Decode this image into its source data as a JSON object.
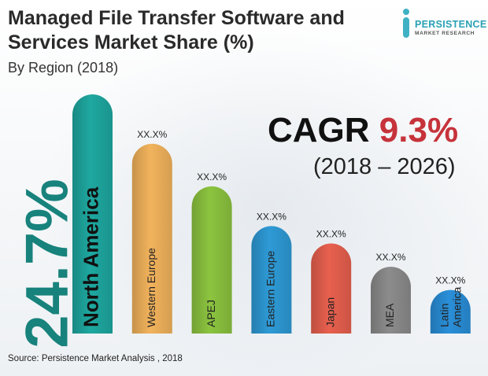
{
  "title": "Managed File Transfer Software and Services Market Share (%)",
  "subtitle": "By Region (2018)",
  "logo": {
    "name": "PERSISTENCE",
    "sub": "MARKET RESEARCH"
  },
  "cagr": {
    "label": "CAGR",
    "value": "9.3%",
    "period": "(2018 – 2026)"
  },
  "highlight": "24.7%",
  "source": "Source: Persistence Market Analysis , 2018",
  "chart_data": {
    "type": "bar",
    "categories": [
      "North America",
      "Western Europe",
      "APEJ",
      "Eastern Europe",
      "Japan",
      "MEA",
      "Latin America"
    ],
    "values": [
      24.7,
      19.6,
      15.2,
      11.1,
      9.3,
      6.9,
      4.5
    ],
    "value_labels": [
      "",
      "XX.X%",
      "XX.X%",
      "XX.X%",
      "XX.X%",
      "XX.X%",
      "XX.X%"
    ],
    "ylim": [
      0,
      24.7
    ],
    "grid": false,
    "legend": "none"
  },
  "colors": {
    "North America": "#1ea8a0",
    "Western Europe": "#f2b35c",
    "APEJ": "#8cc43f",
    "Eastern Europe": "#2e9ad6",
    "Japan": "#e8604e",
    "MEA": "#8c8c8c",
    "Latin America": "#2a8fd9",
    "text": "#222222"
  }
}
